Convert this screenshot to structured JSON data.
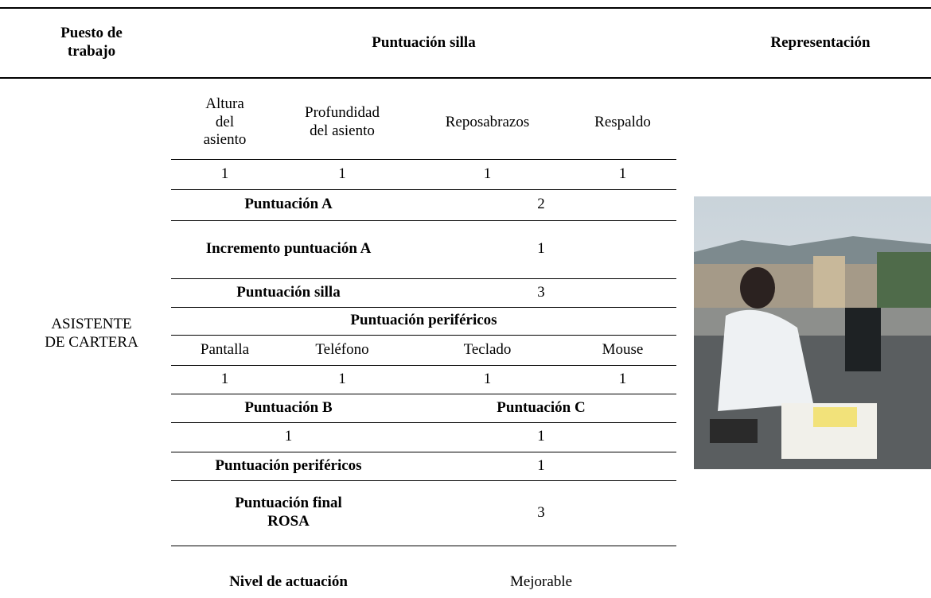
{
  "header": [
    "Puesto de trabajo",
    "Puntuación silla",
    "Representación"
  ],
  "position": "ASISTENTE DE CARTERA",
  "rows": [
    [
      "Altura del asiento",
      "Profundidad del asiento",
      "Reposabrazos",
      "Respaldo"
    ],
    [
      1,
      1,
      1,
      1
    ],
    [
      "Puntuación A",
      2
    ],
    [
      "Incremento puntuación A",
      1
    ],
    [
      "Puntuación silla",
      3
    ],
    [
      "Puntuación periféricos"
    ],
    [
      "Pantalla",
      "Teléfono",
      "Teclado",
      "Mouse"
    ],
    [
      1,
      1,
      1,
      1
    ],
    [
      "Puntuación B",
      "Puntuación C"
    ],
    [
      1,
      1
    ],
    [
      "Puntuación periféricos",
      1
    ],
    [
      "Puntuación final ROSA",
      3
    ],
    [
      "Nivel de actuación",
      "Mejorable"
    ]
  ]
}
